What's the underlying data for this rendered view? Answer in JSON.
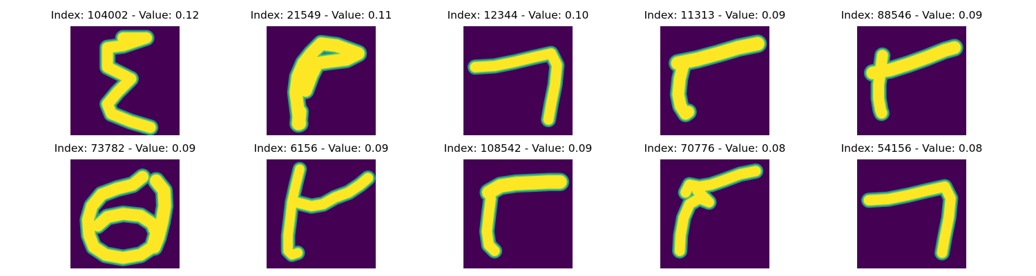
{
  "colors": {
    "background": "#440154",
    "edge": "#21918c",
    "mid": "#5ec962",
    "stroke": "#fde725"
  },
  "panels": [
    {
      "title": "Index: 104002 - Value: 0.12",
      "glyph": "epsilon-glyph"
    },
    {
      "title": "Index: 21549 - Value: 0.11",
      "glyph": "hook-glyph"
    },
    {
      "title": "Index: 12344 - Value: 0.10",
      "glyph": "seven-glyph"
    },
    {
      "title": "Index: 11313 - Value: 0.09",
      "glyph": "bar-glyph"
    },
    {
      "title": "Index: 88546 - Value: 0.09",
      "glyph": "cross-glyph"
    },
    {
      "title": "Index: 73782 - Value: 0.09",
      "glyph": "loop-glyph"
    },
    {
      "title": "Index: 6156 - Value: 0.09",
      "glyph": "branch-glyph"
    },
    {
      "title": "Index: 108542 - Value: 0.09",
      "glyph": "gamma-glyph"
    },
    {
      "title": "Index: 70776 - Value: 0.08",
      "glyph": "stroke-glyph"
    },
    {
      "title": "Index: 54156 - Value: 0.08",
      "glyph": "seven-glyph"
    }
  ]
}
